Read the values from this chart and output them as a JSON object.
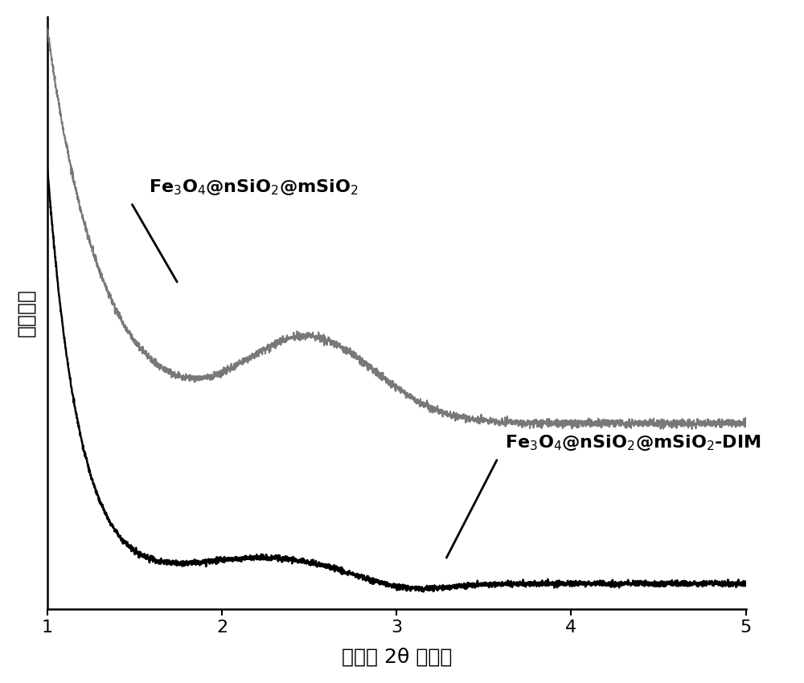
{
  "title": "",
  "xlabel": "衍射角 2θ （度）",
  "ylabel": "衍射强度",
  "xlim": [
    1,
    5
  ],
  "ylim": [
    0,
    1.0
  ],
  "x_ticks": [
    1,
    2,
    3,
    4,
    5
  ],
  "background_color": "#ffffff",
  "gray_color": "#787878",
  "black_color": "#000000",
  "xlabel_fontsize": 18,
  "ylabel_fontsize": 18,
  "tick_fontsize": 16,
  "annotation_fontsize": 16
}
